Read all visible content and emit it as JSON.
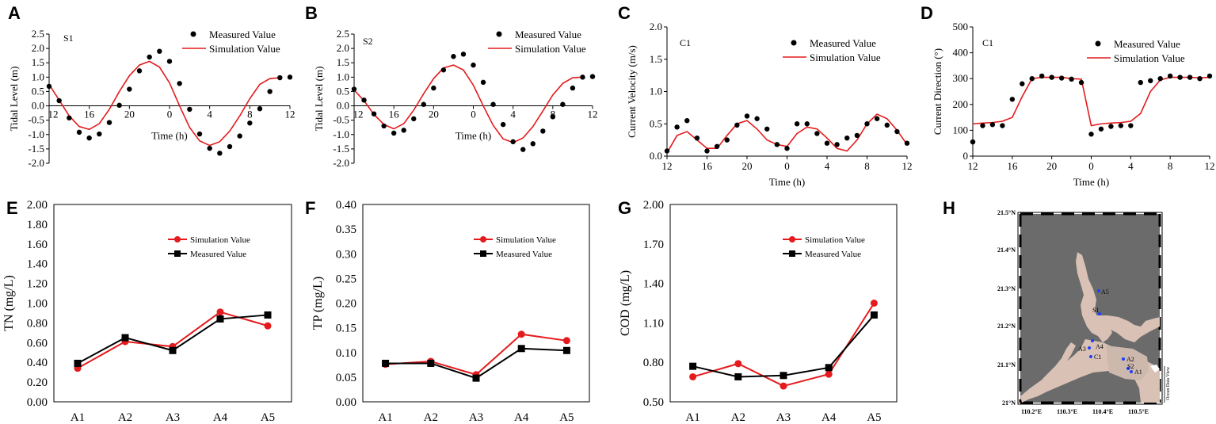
{
  "panel_labels": [
    "A",
    "B",
    "C",
    "D",
    "E",
    "F",
    "G",
    "H"
  ],
  "chart_data": [
    {
      "id": "A",
      "type": "line+scatter",
      "annotation": "S1",
      "xlabel": "Time (h)",
      "ylabel": "Tidal Level (m)",
      "ylim": [
        -2.0,
        2.5
      ],
      "yticks": [
        "-2.0",
        "-1.5",
        "-1.0",
        "-0.5",
        "0.0",
        "0.5",
        "1.0",
        "1.5",
        "2.0",
        "2.5"
      ],
      "xticks": [
        "12",
        "16",
        "20",
        "0",
        "4",
        "8",
        "12"
      ],
      "legend": [
        "Measured Value",
        "Simulation Value"
      ],
      "measured_x": [
        0,
        1,
        2,
        3,
        4,
        5,
        6,
        7,
        8,
        9,
        10,
        11,
        12,
        13,
        14,
        15,
        16,
        17,
        18,
        19,
        20,
        21,
        22,
        23,
        24
      ],
      "measured_y": [
        0.68,
        0.18,
        -0.42,
        -0.92,
        -1.12,
        -0.98,
        -0.58,
        0.02,
        0.58,
        1.22,
        1.7,
        1.9,
        1.55,
        0.78,
        -0.12,
        -0.98,
        -1.48,
        -1.65,
        -1.42,
        -1.05,
        -0.6,
        -0.1,
        0.5,
        0.98,
        1.0
      ],
      "simulation_x": [
        0,
        1,
        2,
        3,
        4,
        5,
        6,
        7,
        8,
        9,
        10,
        11,
        12,
        13,
        14,
        15,
        16,
        17,
        18,
        19,
        20,
        21,
        22,
        23
      ],
      "simulation_y": [
        0.75,
        0.2,
        -0.35,
        -0.72,
        -0.82,
        -0.62,
        -0.12,
        0.5,
        1.05,
        1.42,
        1.55,
        1.35,
        0.8,
        0.0,
        -0.75,
        -1.22,
        -1.38,
        -1.25,
        -0.88,
        -0.35,
        0.25,
        0.75,
        0.95,
        0.98
      ]
    },
    {
      "id": "B",
      "type": "line+scatter",
      "annotation": "S2",
      "xlabel": "Time (h)",
      "ylabel": "Tidal Level (m)",
      "ylim": [
        -2.0,
        2.5
      ],
      "yticks": [
        "-2.0",
        "-1.5",
        "-1.0",
        "-0.5",
        "0.0",
        "0.5",
        "1.0",
        "1.5",
        "2.0",
        "2.5"
      ],
      "xticks": [
        "12",
        "16",
        "20",
        "0",
        "4",
        "8",
        "12"
      ],
      "legend": [
        "Measured Value",
        "Simulation Value"
      ],
      "measured_x": [
        0,
        1,
        2,
        3,
        4,
        5,
        6,
        7,
        8,
        9,
        10,
        11,
        12,
        13,
        14,
        15,
        16,
        17,
        18,
        19,
        20,
        21,
        22,
        23,
        24
      ],
      "measured_y": [
        0.58,
        0.2,
        -0.28,
        -0.7,
        -0.95,
        -0.85,
        -0.45,
        0.05,
        0.62,
        1.25,
        1.72,
        1.8,
        1.42,
        0.82,
        0.05,
        -0.65,
        -1.25,
        -1.52,
        -1.32,
        -0.88,
        -0.38,
        0.05,
        0.62,
        1.0,
        1.02
      ],
      "simulation_x": [
        0,
        1,
        2,
        3,
        4,
        5,
        6,
        7,
        8,
        9,
        10,
        11,
        12,
        13,
        14,
        15,
        16,
        17,
        18,
        19,
        20,
        21,
        22,
        23
      ],
      "simulation_y": [
        0.55,
        0.18,
        -0.3,
        -0.65,
        -0.8,
        -0.62,
        -0.15,
        0.42,
        0.95,
        1.32,
        1.42,
        1.25,
        0.72,
        0.0,
        -0.68,
        -1.15,
        -1.28,
        -1.12,
        -0.72,
        -0.18,
        0.38,
        0.78,
        0.98,
        1.0
      ]
    },
    {
      "id": "C",
      "type": "line+scatter",
      "annotation": "C1",
      "xlabel": "Time (h)",
      "ylabel": "Current Velocity (m/s)",
      "ylim": [
        0.0,
        2.0
      ],
      "yticks": [
        "0.0",
        "0.5",
        "1.0",
        "1.5",
        "2.0"
      ],
      "xticks": [
        "12",
        "16",
        "20",
        "0",
        "4",
        "8",
        "12"
      ],
      "legend": [
        "Measured Value",
        "Simulation Value"
      ],
      "measured_x": [
        0,
        1,
        2,
        3,
        4,
        5,
        6,
        7,
        8,
        9,
        10,
        11,
        12,
        13,
        14,
        15,
        16,
        17,
        18,
        19,
        20,
        21,
        22,
        23,
        24
      ],
      "measured_y": [
        0.08,
        0.45,
        0.55,
        0.28,
        0.08,
        0.15,
        0.25,
        0.48,
        0.62,
        0.58,
        0.42,
        0.18,
        0.12,
        0.5,
        0.5,
        0.35,
        0.2,
        0.18,
        0.28,
        0.32,
        0.5,
        0.58,
        0.48,
        0.38,
        0.2
      ],
      "simulation_x": [
        0,
        1,
        2,
        3,
        4,
        5,
        6,
        7,
        8,
        9,
        10,
        11,
        12,
        13,
        14,
        15,
        16,
        17,
        18,
        19,
        20,
        21,
        22,
        23,
        24
      ],
      "simulation_y": [
        0.05,
        0.32,
        0.38,
        0.25,
        0.12,
        0.12,
        0.32,
        0.5,
        0.55,
        0.42,
        0.25,
        0.18,
        0.15,
        0.35,
        0.45,
        0.42,
        0.28,
        0.12,
        0.08,
        0.25,
        0.5,
        0.65,
        0.58,
        0.4,
        0.18
      ]
    },
    {
      "id": "D",
      "type": "line+scatter",
      "annotation": "C1",
      "xlabel": "Time (h)",
      "ylabel": "Current Direction (°)",
      "ylim": [
        0,
        500
      ],
      "yticks": [
        "0",
        "100",
        "200",
        "300",
        "400",
        "500"
      ],
      "xticks": [
        "12",
        "16",
        "20",
        "0",
        "4",
        "8",
        "12"
      ],
      "legend": [
        "Measured Value",
        "Simulation Value"
      ],
      "measured_x": [
        0,
        1,
        2,
        3,
        4,
        5,
        6,
        7,
        8,
        9,
        10,
        11,
        12,
        13,
        14,
        15,
        16,
        17,
        18,
        19,
        20,
        21,
        22,
        23,
        24
      ],
      "measured_y": [
        55,
        118,
        122,
        118,
        220,
        280,
        300,
        310,
        305,
        302,
        298,
        285,
        85,
        105,
        115,
        118,
        118,
        285,
        292,
        300,
        310,
        305,
        305,
        300,
        310
      ],
      "simulation_x": [
        0,
        1,
        2,
        3,
        4,
        5,
        6,
        7,
        8,
        9,
        10,
        11,
        12,
        13,
        14,
        15,
        16,
        17,
        18,
        19,
        20,
        21,
        22,
        23,
        24
      ],
      "simulation_y": [
        125,
        128,
        130,
        135,
        150,
        230,
        300,
        305,
        305,
        305,
        300,
        298,
        118,
        125,
        128,
        130,
        135,
        165,
        250,
        295,
        305,
        305,
        305,
        303,
        305
      ]
    },
    {
      "id": "E",
      "type": "line",
      "ylabel": "TN (mg/L)",
      "categories": [
        "A1",
        "A2",
        "A3",
        "A4",
        "A5"
      ],
      "ylim": [
        0.0,
        2.0
      ],
      "yticks": [
        "0.00",
        "0.20",
        "0.40",
        "0.60",
        "0.80",
        "1.00",
        "1.20",
        "1.40",
        "1.60",
        "1.80",
        "2.00"
      ],
      "series": [
        {
          "name": "Simulation Value",
          "color": "#e41a1c",
          "marker": "circle",
          "values": [
            0.34,
            0.61,
            0.56,
            0.91,
            0.77
          ]
        },
        {
          "name": "Measured Value",
          "color": "#000000",
          "marker": "square",
          "values": [
            0.39,
            0.65,
            0.52,
            0.84,
            0.88
          ]
        }
      ]
    },
    {
      "id": "F",
      "type": "line",
      "ylabel": "TP (mg/L)",
      "categories": [
        "A1",
        "A2",
        "A3",
        "A4",
        "A5"
      ],
      "ylim": [
        0.0,
        0.4
      ],
      "yticks": [
        "0.00",
        "0.05",
        "0.10",
        "0.15",
        "0.20",
        "0.25",
        "0.30",
        "0.35",
        "0.40"
      ],
      "series": [
        {
          "name": "Simulation Value",
          "color": "#e41a1c",
          "marker": "circle",
          "values": [
            0.076,
            0.082,
            0.055,
            0.137,
            0.124
          ]
        },
        {
          "name": "Measured Value",
          "color": "#000000",
          "marker": "square",
          "values": [
            0.078,
            0.078,
            0.048,
            0.108,
            0.104
          ]
        }
      ]
    },
    {
      "id": "G",
      "type": "line",
      "ylabel": "COD (mg/L)",
      "categories": [
        "A1",
        "A2",
        "A3",
        "A4",
        "A5"
      ],
      "ylim": [
        0.5,
        2.0
      ],
      "yticks": [
        "0.50",
        "0.80",
        "1.10",
        "1.40",
        "1.70",
        "2.00"
      ],
      "series": [
        {
          "name": "Simulation Value",
          "color": "#e41a1c",
          "marker": "circle",
          "values": [
            0.69,
            0.79,
            0.62,
            0.71,
            1.25
          ]
        },
        {
          "name": "Measured Value",
          "color": "#000000",
          "marker": "square",
          "values": [
            0.77,
            0.69,
            0.7,
            0.76,
            1.16
          ]
        }
      ]
    }
  ],
  "map": {
    "lat_ticks": [
      "21.5°N",
      "21.4°N",
      "21.3°N",
      "21.2°N",
      "21.1°N",
      "21°N"
    ],
    "lon_ticks": [
      "110.2°E",
      "110.3°E",
      "110.4°E",
      "110.5°E"
    ],
    "stations": [
      "A5",
      "S1",
      "A4",
      "A3",
      "C1",
      "A2",
      "S2",
      "A1"
    ],
    "side_label": "Ocean Data View",
    "land_color": "#6b6b6b",
    "water_color": "#d9c2b5"
  }
}
